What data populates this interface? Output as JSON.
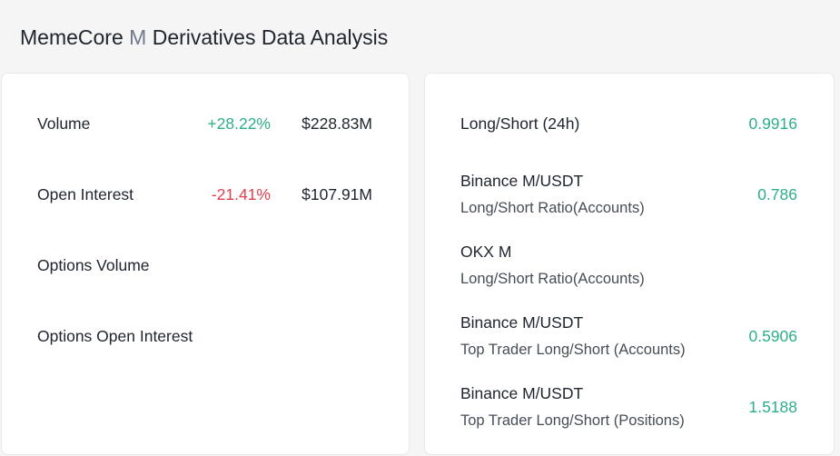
{
  "header": {
    "title_name": "MemeCore",
    "title_symbol": "M",
    "title_rest": "Derivatives Data Analysis"
  },
  "left_card": {
    "rows": [
      {
        "label": "Volume",
        "change": "+28.22%",
        "amount": "$228.83M"
      },
      {
        "label": "Open Interest",
        "change": "-21.41%",
        "amount": "$107.91M"
      },
      {
        "label": "Options Volume"
      },
      {
        "label": "Options Open Interest"
      }
    ]
  },
  "right_card": {
    "rows": [
      {
        "label": "Long/Short (24h)",
        "value": "0.9916"
      },
      {
        "label": "Binance M/USDT",
        "sublabel": "Long/Short Ratio(Accounts)",
        "value": "0.786"
      },
      {
        "label": "OKX M",
        "sublabel": "Long/Short Ratio(Accounts)"
      },
      {
        "label": "Binance M/USDT",
        "sublabel": "Top Trader Long/Short (Accounts)",
        "value": "0.5906"
      },
      {
        "label": "Binance M/USDT",
        "sublabel": "Top Trader Long/Short (Positions)",
        "value": "1.5188"
      }
    ]
  }
}
